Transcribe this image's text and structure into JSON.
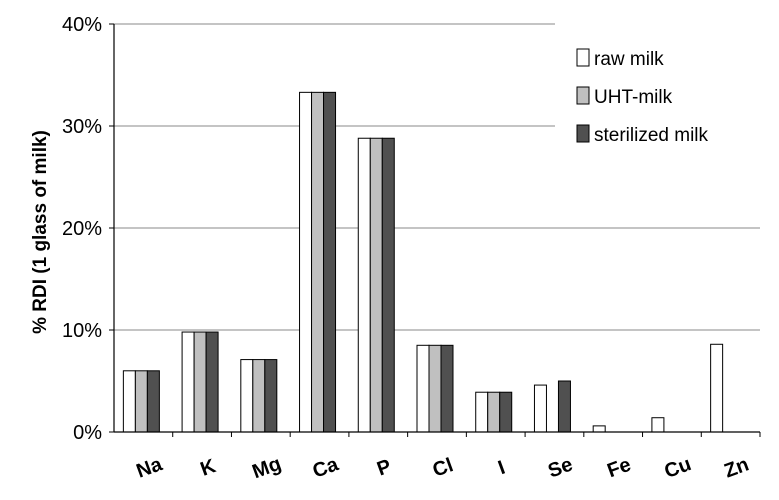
{
  "chart_data": {
    "type": "bar",
    "ylabel": "% RDI (1 glass of milk)",
    "ylim": [
      0,
      40
    ],
    "yticks": [
      "0%",
      "10%",
      "20%",
      "30%",
      "40%"
    ],
    "ytick_values": [
      0,
      10,
      20,
      30,
      40
    ],
    "categories": [
      "Na",
      "K",
      "Mg",
      "Ca",
      "P",
      "Cl",
      "I",
      "Se",
      "Fe",
      "Cu",
      "Zn"
    ],
    "series": [
      {
        "name": "raw milk",
        "color": "#ffffff",
        "values": [
          6.0,
          9.8,
          7.1,
          33.3,
          28.8,
          8.5,
          3.9,
          4.6,
          0.6,
          1.4,
          8.6
        ]
      },
      {
        "name": "UHT-milk",
        "color": "#c0c0c0",
        "values": [
          6.0,
          9.8,
          7.1,
          33.3,
          28.8,
          8.5,
          3.9,
          0,
          0,
          0,
          0
        ]
      },
      {
        "name": "sterilized milk",
        "color": "#505050",
        "values": [
          6.0,
          9.8,
          7.1,
          33.3,
          28.8,
          8.5,
          3.9,
          5.0,
          0,
          0,
          0
        ]
      }
    ],
    "grid": true,
    "legend_position": "top-right"
  }
}
